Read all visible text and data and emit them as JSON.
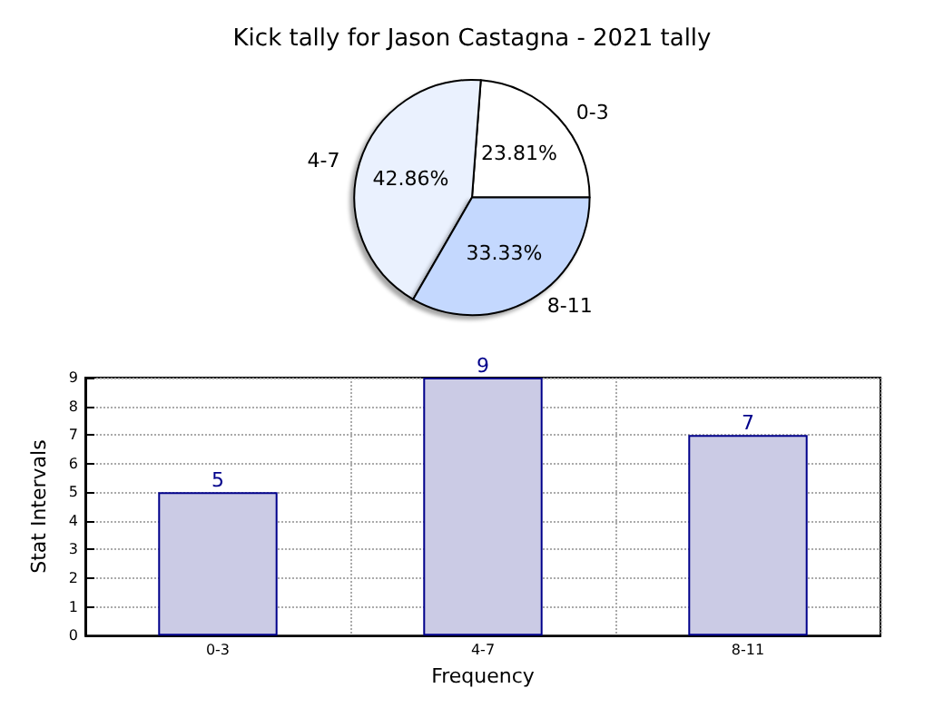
{
  "chart_data": [
    {
      "type": "pie",
      "title": "Kick tally for Jason Castagna - 2021 tally",
      "categories": [
        "0-3",
        "4-7",
        "8-11"
      ],
      "values": [
        23.81,
        42.86,
        33.33
      ],
      "value_labels": [
        "23.81%",
        "42.86%",
        "33.33%"
      ],
      "colors": [
        "#ffffff",
        "#eaf1fe",
        "#c4d8fe"
      ]
    },
    {
      "type": "bar",
      "xlabel": "Frequency",
      "ylabel": "Stat Intervals",
      "categories": [
        "0-3",
        "4-7",
        "8-11"
      ],
      "values": [
        5,
        9,
        7
      ],
      "color": "#cbcbe5",
      "ylim": [
        0,
        9
      ],
      "yticks": [
        0,
        1,
        2,
        3,
        4,
        5,
        6,
        7,
        8,
        9
      ],
      "grid": true,
      "data_labels": true
    }
  ]
}
